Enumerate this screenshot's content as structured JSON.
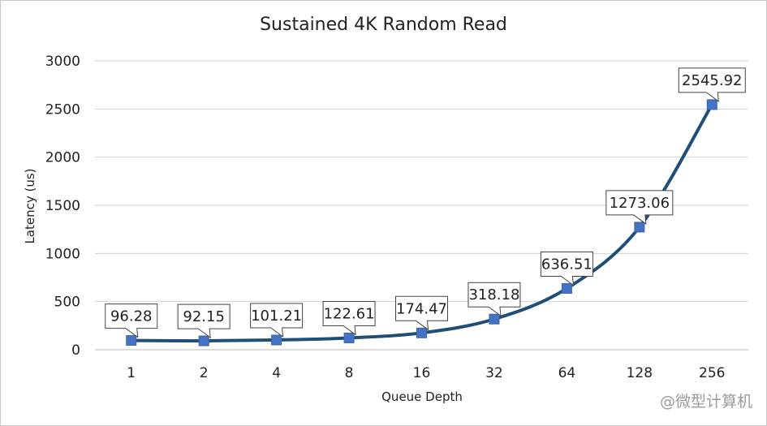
{
  "chart_data": {
    "type": "line",
    "title": "Sustained 4K Random Read",
    "xlabel": "Queue Depth",
    "ylabel": "Latency (us)",
    "categories": [
      "1",
      "2",
      "4",
      "8",
      "16",
      "32",
      "64",
      "128",
      "256"
    ],
    "series": [
      {
        "values": [
          96.28,
          92.15,
          101.21,
          122.61,
          174.47,
          318.18,
          636.51,
          1273.06,
          2545.92
        ]
      }
    ],
    "data_labels": [
      "96.28",
      "92.15",
      "101.21",
      "122.61",
      "174.47",
      "318.18",
      "636.51",
      "1273.06",
      "2545.92"
    ],
    "ylim": [
      0,
      3000
    ],
    "yticks": [
      "0",
      "500",
      "1000",
      "1500",
      "2000",
      "2500",
      "3000"
    ],
    "grid": true,
    "legend": "none",
    "colors": {
      "line": "#1f4e79",
      "marker": "#4472c4",
      "grid": "#d0d0d0"
    }
  },
  "watermark": "@微型计算机"
}
